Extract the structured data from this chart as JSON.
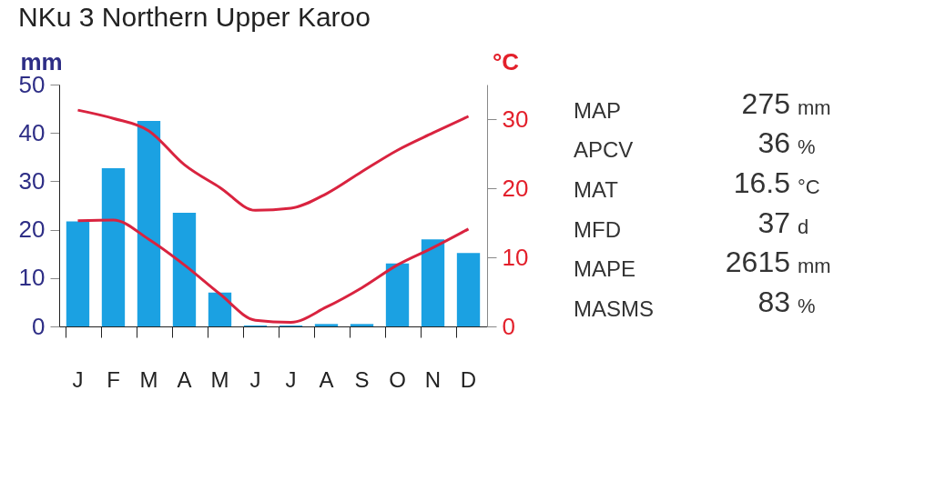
{
  "chart_data": {
    "type": "bar",
    "title": "NKu 3  Northern Upper Karoo",
    "ylabel": "mm",
    "y2label": "°C",
    "categories": [
      "J",
      "F",
      "M",
      "A",
      "M",
      "J",
      "J",
      "A",
      "S",
      "O",
      "N",
      "D"
    ],
    "series": [
      {
        "color": "#1ba1e2",
        "values": [
          21.7,
          32.7,
          42.5,
          23.5,
          7,
          0.2,
          0.2,
          0.5,
          0.5,
          13,
          18,
          15.2
        ]
      },
      {
        "type": "line",
        "axis": "y2",
        "color": "#d9233f",
        "values": [
          31.3,
          30.1,
          28.3,
          23.4,
          20.1,
          16.8,
          17.1,
          19.2,
          22.4,
          25.5,
          28,
          30.4
        ]
      },
      {
        "type": "line",
        "axis": "y2",
        "color": "#d9233f",
        "values": [
          15.3,
          15.4,
          12.6,
          8.9,
          4.7,
          0.9,
          0.6,
          2.8,
          5.6,
          8.9,
          11.4,
          14.1
        ]
      }
    ],
    "ylim": [
      0,
      50
    ],
    "yticks": [
      0,
      10,
      20,
      30,
      40,
      50
    ],
    "y2lim": [
      0,
      35
    ],
    "y2ticks": [
      0,
      10,
      20,
      30
    ],
    "grid": false,
    "legend": false,
    "annotations": [
      "MAP",
      "275",
      "mm",
      "APCV",
      "36",
      "%",
      "MAT",
      "16.5",
      "°C",
      "MFD",
      "37",
      "d",
      "MAPE",
      "2615",
      "mm",
      "MASMS",
      "83",
      "%"
    ]
  }
}
